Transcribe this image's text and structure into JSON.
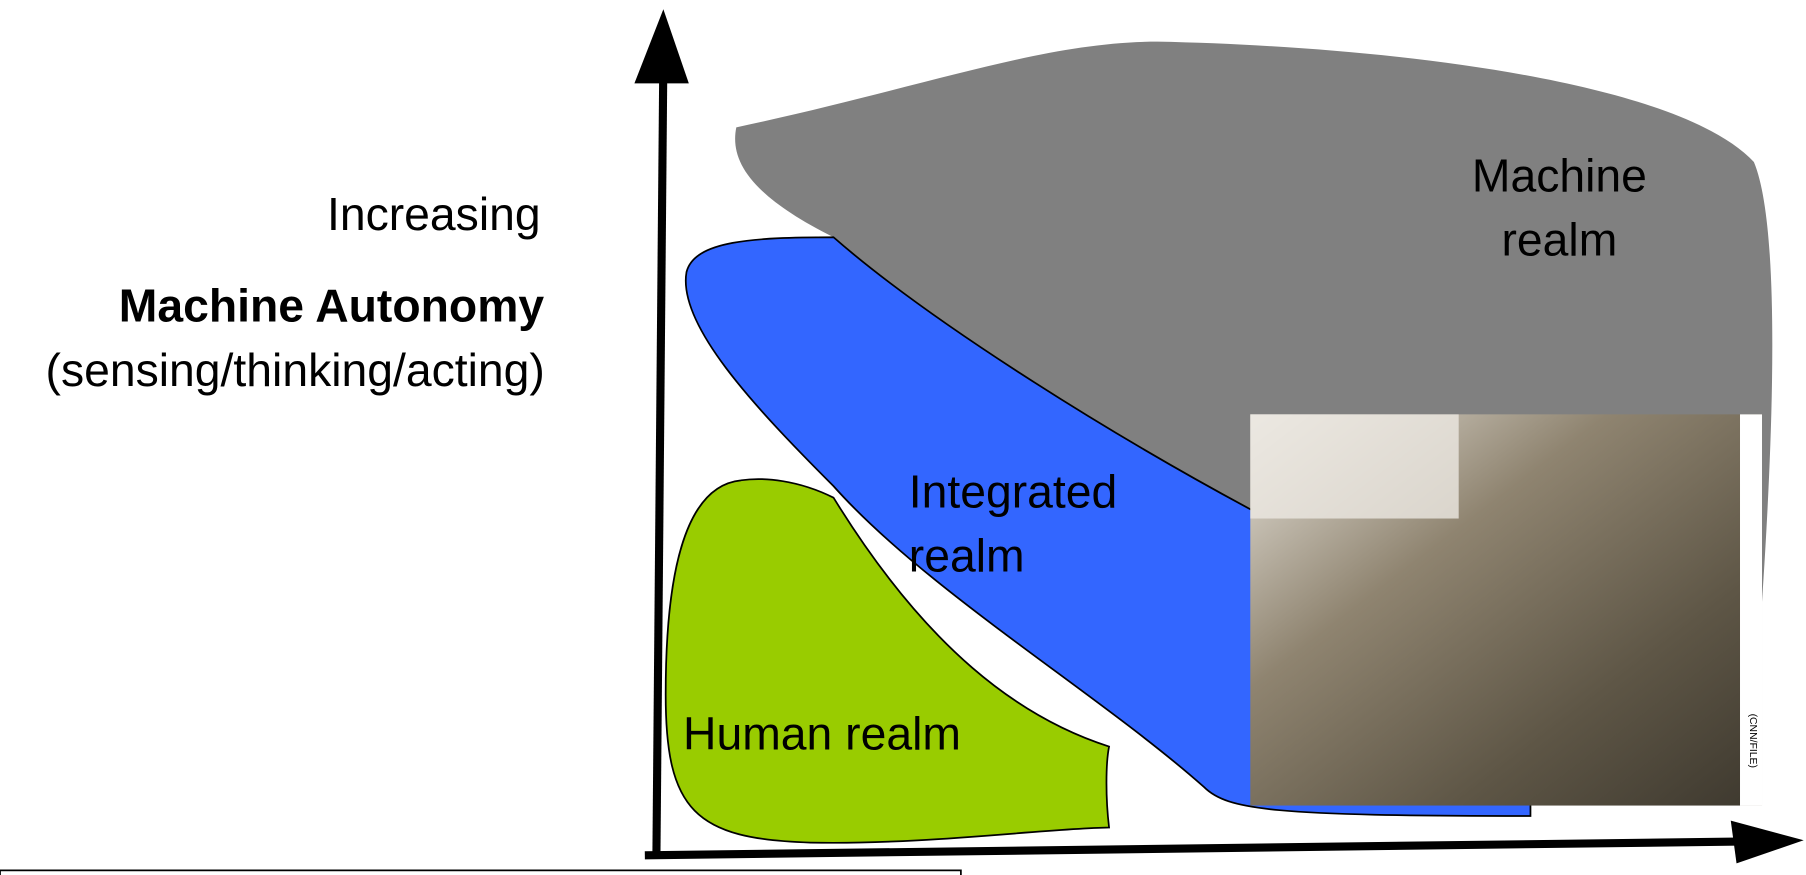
{
  "axis_label": {
    "line1": "Increasing",
    "line2": "Machine Autonomy",
    "line3": "(sensing/thinking/acting)"
  },
  "regions": {
    "machine": {
      "line1": "Machine",
      "line2": "realm"
    },
    "integrated": {
      "line1": "Integrated",
      "line2": "realm"
    },
    "human": {
      "label": "Human realm"
    }
  },
  "photo": {
    "credit": "(CNN/FILE)"
  }
}
